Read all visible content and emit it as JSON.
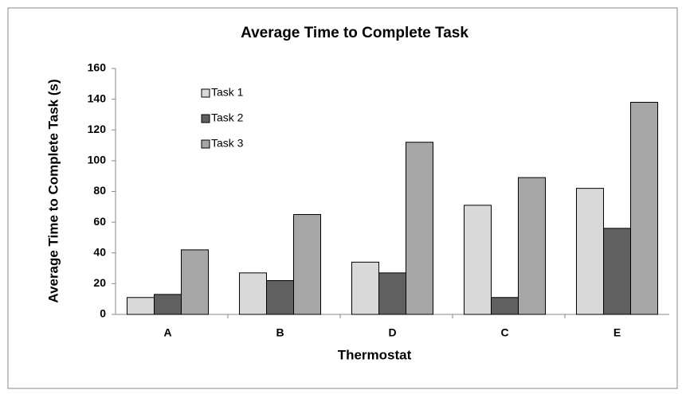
{
  "chart_data": {
    "type": "bar",
    "title": "Average Time to Complete Task",
    "x_label": "Thermostat",
    "y_label": "Average Time  to Complete Task (s)",
    "categories": [
      "A",
      "B",
      "D",
      "C",
      "E"
    ],
    "series": [
      {
        "name": "Task 1",
        "color": "#d9d9d9",
        "values": [
          11,
          27,
          34,
          71,
          82
        ]
      },
      {
        "name": "Task 2",
        "color": "#606060",
        "values": [
          13,
          22,
          27,
          11,
          56
        ]
      },
      {
        "name": "Task 3",
        "color": "#a6a6a6",
        "values": [
          42,
          65,
          112,
          89,
          138
        ]
      }
    ],
    "ylim": [
      0,
      160
    ],
    "yticks": [
      0,
      20,
      40,
      60,
      80,
      100,
      120,
      140,
      160
    ],
    "grid": false,
    "legend": "upper left"
  }
}
